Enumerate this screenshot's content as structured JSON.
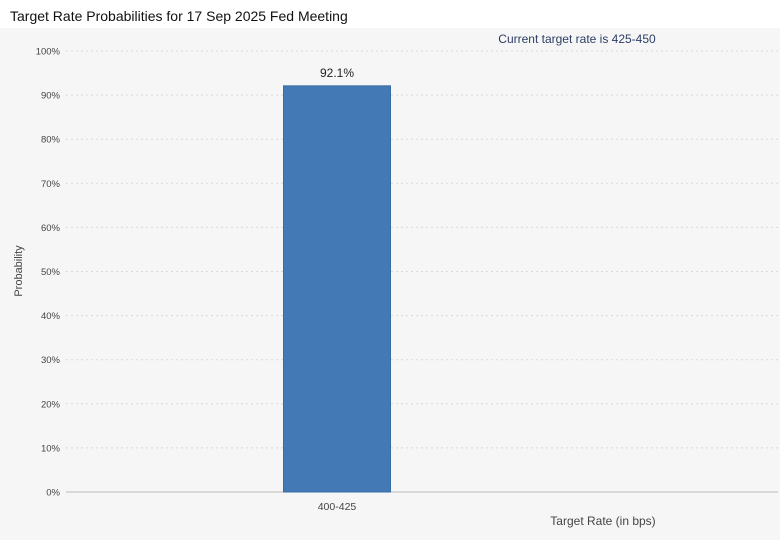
{
  "title": "Target Rate Probabilities for 17 Sep 2025 Fed Meeting",
  "chart_data": {
    "type": "bar",
    "title": "Target Rate Probabilities for 17 Sep 2025 Fed Meeting",
    "subtitle": "Current target rate is 425-450",
    "xlabel": "Target Rate (in bps)",
    "ylabel": "Probability",
    "categories": [
      "400-425"
    ],
    "values": [
      92.1
    ],
    "value_labels": [
      "92.1%"
    ],
    "ylim": [
      0,
      100
    ],
    "yticks": [
      "0%",
      "10%",
      "20%",
      "30%",
      "40%",
      "50%",
      "60%",
      "70%",
      "80%",
      "90%",
      "100%"
    ],
    "grid": true,
    "colors": {
      "bar": "#4379b5",
      "grid": "#d9d9d9",
      "axis_text": "#444444",
      "subtitle": "#2c3e66",
      "background": "#f6f6f6"
    }
  }
}
